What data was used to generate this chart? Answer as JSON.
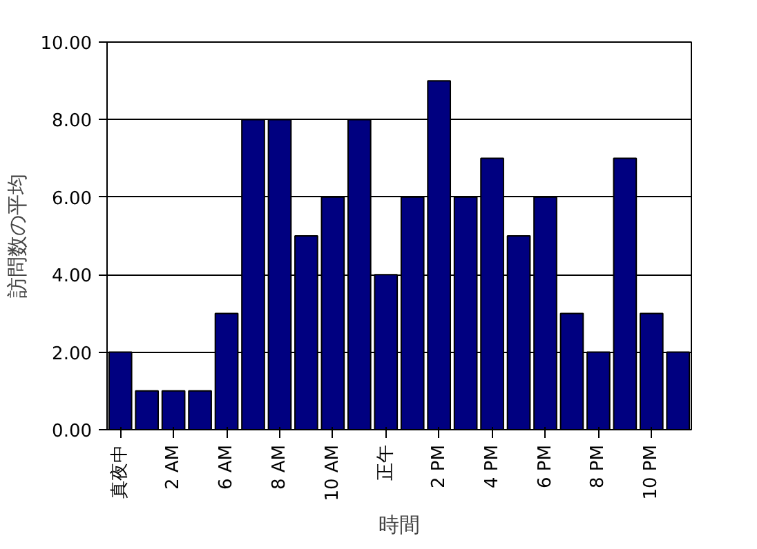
{
  "chart_data": {
    "type": "bar",
    "xlabel": "時間",
    "ylabel": "訪問数の平均",
    "categories": [
      "真夜中",
      null,
      "2 AM",
      null,
      "6 AM",
      null,
      "8 AM",
      null,
      "10 AM",
      null,
      "正午",
      null,
      "2 PM",
      null,
      "4 PM",
      null,
      "6 PM",
      null,
      "8 PM",
      null,
      "10 PM",
      null
    ],
    "values": [
      2,
      1,
      1,
      1,
      3,
      8,
      8,
      5,
      6,
      8,
      4,
      6,
      9,
      6,
      7,
      5,
      6,
      3,
      2,
      7,
      3,
      2
    ],
    "color": "#000080",
    "ylim": [
      0,
      10
    ],
    "yticks": [
      {
        "value": 0,
        "label": "0.00"
      },
      {
        "value": 2,
        "label": "2.00"
      },
      {
        "value": 4,
        "label": "4.00"
      },
      {
        "value": 6,
        "label": "6.00"
      },
      {
        "value": 8,
        "label": "8.00"
      },
      {
        "value": 10,
        "label": "10.00"
      }
    ],
    "grid": "y"
  }
}
